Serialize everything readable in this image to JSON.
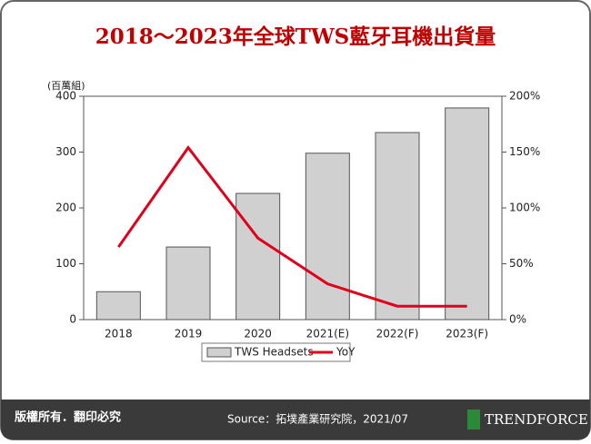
{
  "chart_data": {
    "type": "bar",
    "title": "2018～2023年全球TWS藍牙耳機出貨量",
    "y_label": "(百萬組)",
    "categories": [
      "2018",
      "2019",
      "2020",
      "2021(E)",
      "2022(F)",
      "2023(F)"
    ],
    "series": [
      {
        "name": "TWS Headsets",
        "color": "#d0d0d0",
        "values": [
          50,
          130,
          226,
          298,
          335,
          379
        ]
      },
      {
        "name": "YoY",
        "color": "#e0001b",
        "axis": "y2",
        "values": [
          65,
          154,
          73,
          32,
          12,
          12
        ]
      }
    ],
    "ylim": [
      0,
      400
    ],
    "yticks": [
      0,
      100,
      200,
      300,
      400
    ],
    "y2lim": [
      0,
      200
    ],
    "y2ticks": [
      {
        "value": 0,
        "label": "0%"
      },
      {
        "value": 50,
        "label": "50%"
      },
      {
        "value": 100,
        "label": "100%"
      },
      {
        "value": 150,
        "label": "150%"
      },
      {
        "value": 200,
        "label": "200%"
      }
    ],
    "legend": "bottom"
  },
  "footer": {
    "copyright": "版權所有．翻印必究",
    "source": "Source：拓墣產業研究院，2021/07",
    "logo": "TRENDFORCE"
  }
}
